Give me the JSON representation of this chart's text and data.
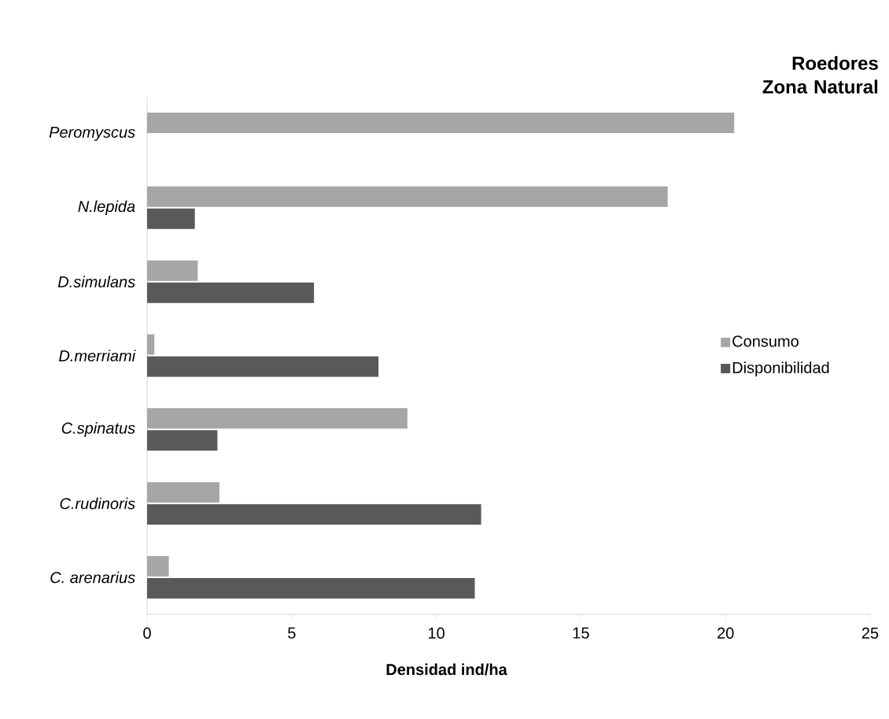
{
  "chart_data": {
    "type": "bar",
    "orientation": "horizontal",
    "title": "Roedores Zona Natural",
    "xlabel": "Densidad    ind/ha",
    "categories": [
      "Peromyscus",
      "N.lepida",
      "D.simulans",
      "D.merriami",
      "C.spinatus",
      "C.rudinoris",
      "C. arenarius"
    ],
    "series": [
      {
        "name": "Consumo",
        "color": "#a6a6a6",
        "values": [
          20.3,
          18.0,
          1.75,
          0.25,
          9.0,
          2.5,
          0.75
        ]
      },
      {
        "name": "Disponibilidad",
        "color": "#595959",
        "values": [
          null,
          1.65,
          5.77,
          8.0,
          2.43,
          11.55,
          11.33
        ]
      }
    ],
    "xlim": [
      0,
      25
    ],
    "xticks": [
      0,
      5,
      10,
      15,
      20,
      25
    ],
    "grid": false,
    "legend": "right"
  }
}
